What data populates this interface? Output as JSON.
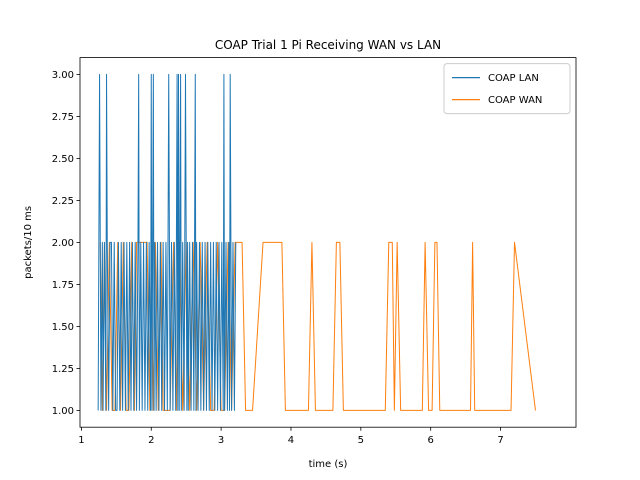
{
  "chart_data": {
    "type": "line",
    "title": "COAP Trial 1 Pi Receiving WAN vs LAN",
    "xlabel": "time (s)",
    "ylabel": "packets/10 ms",
    "xlim": [
      0.98,
      8.08
    ],
    "ylim": [
      0.9,
      3.1
    ],
    "xticks": [
      1,
      2,
      3,
      4,
      5,
      6,
      7
    ],
    "yticks": [
      1.0,
      1.25,
      1.5,
      1.75,
      2.0,
      2.25,
      2.5,
      2.75,
      3.0
    ],
    "ytick_labels": [
      "1.00",
      "1.25",
      "1.50",
      "1.75",
      "2.00",
      "2.25",
      "2.50",
      "2.75",
      "3.00"
    ],
    "grid": false,
    "legend_position": "top-right",
    "series": [
      {
        "name": "COAP WAN",
        "color": "#ff7f0e",
        "x": [
          1.27,
          1.3,
          1.33,
          1.36,
          1.4,
          1.44,
          1.48,
          1.52,
          1.56,
          1.6,
          1.64,
          1.68,
          1.72,
          1.76,
          1.79,
          1.82,
          1.86,
          1.9,
          1.94,
          1.98,
          2.0,
          2.03,
          2.06,
          2.1,
          2.14,
          2.17,
          2.22,
          2.27,
          2.32,
          2.36,
          2.4,
          2.45,
          2.5,
          2.55,
          2.6,
          2.65,
          2.7,
          2.75,
          2.8,
          2.85,
          2.9,
          2.95,
          3.0,
          3.05,
          3.1,
          3.15,
          3.2,
          3.25,
          3.3,
          3.35,
          3.4,
          3.45,
          3.6,
          3.65,
          3.87,
          3.92,
          4.2,
          4.25,
          4.3,
          4.35,
          4.6,
          4.65,
          4.7,
          4.75,
          4.98,
          5.35,
          5.4,
          5.45,
          5.48,
          5.52,
          5.57,
          5.62,
          5.88,
          5.92,
          5.97,
          6.02,
          6.06,
          6.09,
          6.13,
          6.57,
          6.6,
          6.63,
          7.07,
          7.15,
          7.2,
          7.5
        ],
        "y": [
          2,
          1,
          2,
          1,
          2,
          1,
          1,
          2,
          1,
          2,
          1,
          1,
          2,
          1,
          2,
          2,
          2,
          2,
          2,
          1,
          2,
          1,
          2,
          1,
          2,
          1,
          1,
          1,
          2,
          1,
          2,
          1,
          2,
          1,
          2,
          1,
          2,
          1,
          2,
          1,
          1,
          2,
          1,
          1,
          2,
          1,
          2,
          2,
          2,
          1,
          1,
          1,
          2,
          2,
          2,
          1,
          1,
          1,
          2,
          1,
          1,
          2,
          2,
          1,
          1,
          1,
          2,
          2,
          1,
          2,
          1,
          1,
          1,
          2,
          1,
          1,
          2,
          2,
          1,
          1,
          2,
          1,
          1,
          1,
          2,
          1
        ]
      },
      {
        "name": "COAP LAN",
        "color": "#1f77b4",
        "x": [
          1.24,
          1.26,
          1.27,
          1.28,
          1.3,
          1.31,
          1.33,
          1.35,
          1.36,
          1.37,
          1.39,
          1.41,
          1.43,
          1.45,
          1.47,
          1.49,
          1.51,
          1.53,
          1.55,
          1.57,
          1.59,
          1.61,
          1.63,
          1.65,
          1.67,
          1.69,
          1.71,
          1.73,
          1.75,
          1.77,
          1.79,
          1.81,
          1.82,
          1.83,
          1.85,
          1.87,
          1.89,
          1.91,
          1.93,
          1.95,
          1.97,
          1.99,
          2.0,
          2.01,
          2.02,
          2.03,
          2.04,
          2.05,
          2.07,
          2.09,
          2.11,
          2.13,
          2.15,
          2.17,
          2.19,
          2.21,
          2.23,
          2.25,
          2.27,
          2.29,
          2.31,
          2.33,
          2.35,
          2.37,
          2.38,
          2.39,
          2.4,
          2.41,
          2.42,
          2.43,
          2.45,
          2.47,
          2.49,
          2.51,
          2.52,
          2.53,
          2.55,
          2.57,
          2.59,
          2.61,
          2.63,
          2.64,
          2.65,
          2.67,
          2.69,
          2.71,
          2.73,
          2.75,
          2.77,
          2.79,
          2.81,
          2.83,
          2.85,
          2.87,
          2.89,
          2.91,
          2.93,
          2.95,
          2.97,
          2.99,
          3.01,
          3.03,
          3.04,
          3.05,
          3.07,
          3.09,
          3.11,
          3.12,
          3.13,
          3.15,
          3.17,
          3.19,
          3.21
        ],
        "y": [
          1,
          3,
          2,
          1,
          2,
          1,
          2,
          1,
          3,
          2,
          1,
          2,
          2,
          1,
          2,
          1,
          1,
          2,
          1,
          2,
          1,
          2,
          1,
          2,
          1,
          2,
          1,
          2,
          1,
          2,
          1,
          2,
          3,
          1,
          2,
          1,
          2,
          1,
          2,
          1,
          2,
          1,
          3,
          1,
          2,
          3,
          1,
          2,
          1,
          2,
          1,
          2,
          1,
          2,
          1,
          2,
          1,
          3,
          1,
          2,
          1,
          2,
          1,
          3,
          1,
          3,
          1,
          2,
          3,
          1,
          2,
          1,
          3,
          1,
          2,
          1,
          2,
          1,
          2,
          1,
          3,
          1,
          2,
          1,
          2,
          1,
          2,
          1,
          2,
          1,
          2,
          1,
          2,
          1,
          2,
          1,
          2,
          1,
          2,
          1,
          2,
          1,
          3,
          1,
          2,
          1,
          2,
          1,
          3,
          1,
          2,
          1,
          2
        ]
      }
    ],
    "legend": [
      {
        "name": "COAP LAN",
        "color": "#1f77b4"
      },
      {
        "name": "COAP WAN",
        "color": "#ff7f0e"
      }
    ]
  }
}
